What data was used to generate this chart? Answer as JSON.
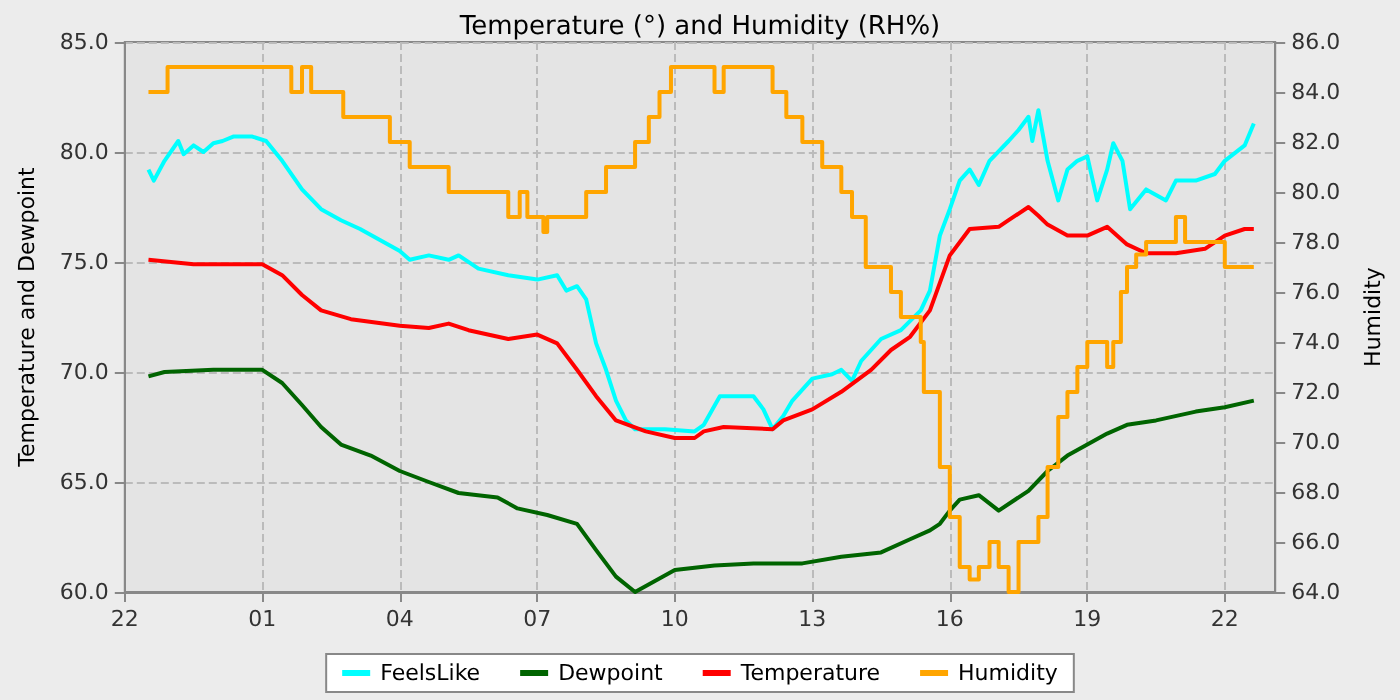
{
  "chart_data": {
    "type": "line",
    "title": "Temperature (°) and Humidity (RH%)",
    "ylabel": "Temperature and Dewpoint",
    "y2label": "Humidity",
    "xlim": [
      "--01-01T22:00",
      "--01-02T23:06"
    ],
    "xticks": [
      {
        "value": "--01-01T22:00",
        "label": "22"
      },
      {
        "value": "--01-02T01:00",
        "label": "01"
      },
      {
        "value": "--01-02T04:00",
        "label": "04"
      },
      {
        "value": "--01-02T07:00",
        "label": "07"
      },
      {
        "value": "--01-02T10:00",
        "label": "10"
      },
      {
        "value": "--01-02T13:00",
        "label": "13"
      },
      {
        "value": "--01-02T16:00",
        "label": "16"
      },
      {
        "value": "--01-02T19:00",
        "label": "19"
      },
      {
        "value": "--01-02T22:00",
        "label": "22"
      }
    ],
    "ylim": [
      60,
      85
    ],
    "yticks": [
      {
        "value": 60,
        "label": "60.0"
      },
      {
        "value": 65,
        "label": "65.0"
      },
      {
        "value": 70,
        "label": "70.0"
      },
      {
        "value": 75,
        "label": "75.0"
      },
      {
        "value": 80,
        "label": "80.0"
      },
      {
        "value": 85,
        "label": "85.0"
      }
    ],
    "y2lim": [
      64,
      86
    ],
    "y2ticks": [
      {
        "value": 64,
        "label": "64.0"
      },
      {
        "value": 66,
        "label": "66.0"
      },
      {
        "value": 68,
        "label": "68.0"
      },
      {
        "value": 70,
        "label": "70.0"
      },
      {
        "value": 72,
        "label": "72.0"
      },
      {
        "value": 74,
        "label": "74.0"
      },
      {
        "value": 76,
        "label": "76.0"
      },
      {
        "value": 78,
        "label": "78.0"
      },
      {
        "value": 80,
        "label": "80.0"
      },
      {
        "value": 82,
        "label": "82.0"
      },
      {
        "value": 84,
        "label": "84.0"
      },
      {
        "value": 86,
        "label": "86.0"
      }
    ],
    "grid": true,
    "legend": "bottom",
    "marker": "none",
    "line_style": "solid",
    "series": [
      {
        "name": "FeelsLike",
        "color": "#00ffff",
        "x": [
          "--01-01T22:31",
          "--01-01T22:38",
          "--01-01T22:52",
          "--01-01T23:10",
          "--01-01T23:17",
          "--01-01T23:30",
          "--01-01T23:43",
          "--01-01T23:56",
          "--01-02T00:08",
          "--01-02T00:22",
          "--01-02T00:47",
          "--01-02T01:05",
          "--01-02T01:26",
          "--01-02T01:52",
          "--01-02T02:17",
          "--01-02T02:43",
          "--01-02T03:08",
          "--01-02T03:34",
          "--01-02T04:00",
          "--01-02T04:13",
          "--01-02T04:38",
          "--01-02T05:04",
          "--01-02T05:17",
          "--01-02T05:43",
          "--01-02T06:22",
          "--01-02T07:00",
          "--01-02T07:26",
          "--01-02T07:38",
          "--01-02T07:52",
          "--01-02T08:04",
          "--01-02T08:17",
          "--01-02T08:30",
          "--01-02T08:43",
          "--01-02T08:56",
          "--01-02T09:08",
          "--01-02T09:47",
          "--01-02T10:26",
          "--01-02T10:38",
          "--01-02T10:59",
          "--01-02T11:43",
          "--01-02T11:56",
          "--01-02T12:08",
          "--01-02T12:22",
          "--01-02T12:34",
          "--01-02T13:00",
          "--01-02T13:26",
          "--01-02T13:38",
          "--01-02T13:52",
          "--01-02T14:04",
          "--01-02T14:30",
          "--01-02T14:56",
          "--01-02T15:22",
          "--01-02T15:34",
          "--01-02T15:47",
          "--01-02T16:00",
          "--01-02T16:13",
          "--01-02T16:26",
          "--01-02T16:38",
          "--01-02T16:52",
          "--01-02T17:17",
          "--01-02T17:30",
          "--01-02T17:43",
          "--01-02T17:48",
          "--01-02T17:56",
          "--01-02T18:08",
          "--01-02T18:22",
          "--01-02T18:34",
          "--01-02T18:47",
          "--01-02T19:00",
          "--01-02T19:13",
          "--01-02T19:26",
          "--01-02T19:34",
          "--01-02T19:46",
          "--01-02T19:56",
          "--01-02T20:17",
          "--01-02T20:43",
          "--01-02T20:56",
          "--01-02T21:22",
          "--01-02T21:47",
          "--01-02T22:00",
          "--01-02T22:26",
          "--01-02T22:38"
        ],
        "values": [
          79.2,
          78.7,
          79.6,
          80.5,
          79.9,
          80.3,
          80.0,
          80.4,
          80.5,
          80.7,
          80.7,
          80.5,
          79.6,
          78.3,
          77.4,
          76.9,
          76.5,
          76.0,
          75.5,
          75.1,
          75.3,
          75.1,
          75.3,
          74.7,
          74.4,
          74.2,
          74.4,
          73.7,
          73.9,
          73.3,
          71.3,
          70.1,
          68.7,
          67.8,
          67.4,
          67.4,
          67.3,
          67.6,
          68.9,
          68.9,
          68.3,
          67.4,
          68.0,
          68.7,
          69.7,
          69.9,
          70.1,
          69.6,
          70.5,
          71.5,
          71.9,
          72.8,
          73.7,
          76.2,
          77.4,
          78.7,
          79.2,
          78.5,
          79.6,
          80.5,
          81.0,
          81.6,
          80.5,
          81.9,
          79.6,
          77.8,
          79.2,
          79.6,
          79.8,
          77.8,
          79.2,
          80.4,
          79.6,
          77.4,
          78.3,
          77.8,
          78.7,
          78.7,
          79.0,
          79.6,
          80.3,
          81.3
        ]
      },
      {
        "name": "Dewpoint",
        "color": "#006400",
        "x": [
          "--01-01T22:31",
          "--01-01T22:52",
          "--01-01T23:56",
          "--01-02T01:00",
          "--01-02T01:26",
          "--01-02T01:52",
          "--01-02T02:17",
          "--01-02T02:43",
          "--01-02T03:22",
          "--01-02T04:00",
          "--01-02T04:38",
          "--01-02T05:17",
          "--01-02T06:08",
          "--01-02T06:34",
          "--01-02T07:13",
          "--01-02T07:52",
          "--01-02T08:17",
          "--01-02T08:43",
          "--01-02T09:08",
          "--01-02T09:34",
          "--01-02T10:00",
          "--01-02T10:52",
          "--01-02T11:43",
          "--01-02T12:47",
          "--01-02T13:38",
          "--01-02T14:30",
          "--01-02T15:08",
          "--01-02T15:34",
          "--01-02T15:47",
          "--01-02T16:00",
          "--01-02T16:13",
          "--01-02T16:38",
          "--01-02T17:04",
          "--01-02T17:43",
          "--01-02T18:08",
          "--01-02T18:34",
          "--01-02T19:00",
          "--01-02T19:26",
          "--01-02T19:52",
          "--01-02T20:30",
          "--01-02T21:22",
          "--01-02T22:00",
          "--01-02T22:38"
        ],
        "values": [
          69.8,
          70.0,
          70.1,
          70.1,
          69.5,
          68.5,
          67.5,
          66.7,
          66.2,
          65.5,
          65.0,
          64.5,
          64.3,
          63.8,
          63.5,
          63.1,
          61.9,
          60.7,
          60.0,
          60.5,
          61.0,
          61.2,
          61.3,
          61.3,
          61.6,
          61.8,
          62.4,
          62.8,
          63.1,
          63.7,
          64.2,
          64.4,
          63.7,
          64.6,
          65.5,
          66.2,
          66.7,
          67.2,
          67.6,
          67.8,
          68.2,
          68.4,
          68.7
        ]
      },
      {
        "name": "Temperature",
        "color": "#ff0000",
        "x": [
          "--01-01T22:31",
          "--01-01T23:30",
          "--01-02T01:00",
          "--01-02T01:26",
          "--01-02T01:52",
          "--01-02T02:17",
          "--01-02T02:56",
          "--01-02T04:00",
          "--01-02T04:38",
          "--01-02T05:04",
          "--01-02T05:30",
          "--01-02T06:22",
          "--01-02T07:00",
          "--01-02T07:26",
          "--01-02T07:52",
          "--01-02T08:17",
          "--01-02T08:43",
          "--01-02T09:22",
          "--01-02T10:00",
          "--01-02T10:26",
          "--01-02T10:38",
          "--01-02T11:04",
          "--01-02T12:08",
          "--01-02T12:22",
          "--01-02T13:00",
          "--01-02T13:38",
          "--01-02T14:17",
          "--01-02T14:43",
          "--01-02T15:08",
          "--01-02T15:34",
          "--01-02T16:00",
          "--01-02T16:26",
          "--01-02T17:04",
          "--01-02T17:17",
          "--01-02T17:43",
          "--01-02T17:56",
          "--01-02T18:08",
          "--01-02T18:34",
          "--01-02T19:00",
          "--01-02T19:26",
          "--01-02T19:52",
          "--01-02T20:17",
          "--01-02T20:56",
          "--01-02T21:34",
          "--01-02T22:00",
          "--01-02T22:26",
          "--01-02T22:38"
        ],
        "values": [
          75.1,
          74.9,
          74.9,
          74.4,
          73.5,
          72.8,
          72.4,
          72.1,
          72.0,
          72.2,
          71.9,
          71.5,
          71.7,
          71.3,
          70.1,
          68.9,
          67.8,
          67.3,
          67.0,
          67.0,
          67.3,
          67.5,
          67.4,
          67.8,
          68.3,
          69.1,
          70.1,
          71.0,
          71.6,
          72.8,
          75.3,
          76.5,
          76.6,
          76.9,
          77.5,
          77.1,
          76.7,
          76.2,
          76.2,
          76.6,
          75.8,
          75.4,
          75.4,
          75.6,
          76.2,
          76.5,
          76.5
        ]
      },
      {
        "name": "Humidity",
        "color": "#ffa500",
        "type": "step",
        "axis": "y2",
        "x": [
          "--01-01T22:31",
          "--01-01T22:56",
          "--01-02T01:38",
          "--01-02T01:52",
          "--01-02T02:04",
          "--01-02T02:46",
          "--01-02T03:47",
          "--01-02T04:13",
          "--01-02T05:04",
          "--01-02T06:22",
          "--01-02T06:37",
          "--01-02T06:47",
          "--01-02T07:08",
          "--01-02T07:13",
          "--01-02T08:04",
          "--01-02T08:30",
          "--01-02T09:08",
          "--01-02T09:26",
          "--01-02T09:40",
          "--01-02T09:55",
          "--01-02T10:52",
          "--01-02T11:04",
          "--01-02T12:08",
          "--01-02T12:26",
          "--01-02T12:47",
          "--01-02T13:13",
          "--01-02T13:38",
          "--01-02T13:52",
          "--01-02T14:10",
          "--01-02T14:43",
          "--01-02T14:56",
          "--01-02T15:22",
          "--01-02T15:26",
          "--01-02T15:47",
          "--01-02T16:00",
          "--01-02T16:13",
          "--01-02T16:26",
          "--01-02T16:38",
          "--01-02T16:52",
          "--01-02T17:04",
          "--01-02T17:17",
          "--01-02T17:30",
          "--01-02T17:43",
          "--01-02T17:56",
          "--01-02T18:08",
          "--01-02T18:22",
          "--01-02T18:34",
          "--01-02T18:47",
          "--01-02T19:00",
          "--01-02T19:26",
          "--01-02T19:34",
          "--01-02T19:44",
          "--01-02T19:52",
          "--01-02T20:04",
          "--01-02T20:17",
          "--01-02T20:56",
          "--01-02T21:08",
          "--01-02T22:00",
          "--01-02T22:38"
        ],
        "values": [
          84,
          85,
          84,
          85,
          84,
          83,
          82,
          81,
          80,
          79,
          80,
          79,
          78.4,
          79,
          80,
          81,
          82,
          83,
          84,
          85,
          84,
          85,
          84,
          83,
          82,
          81,
          80,
          79,
          77,
          76,
          75,
          74,
          72,
          69,
          67,
          65,
          64.5,
          65,
          66,
          65,
          64,
          66,
          66,
          67,
          69,
          71,
          72,
          73,
          74,
          73,
          74,
          76,
          77,
          77.5,
          78,
          79,
          78,
          77,
          77
        ]
      }
    ]
  }
}
